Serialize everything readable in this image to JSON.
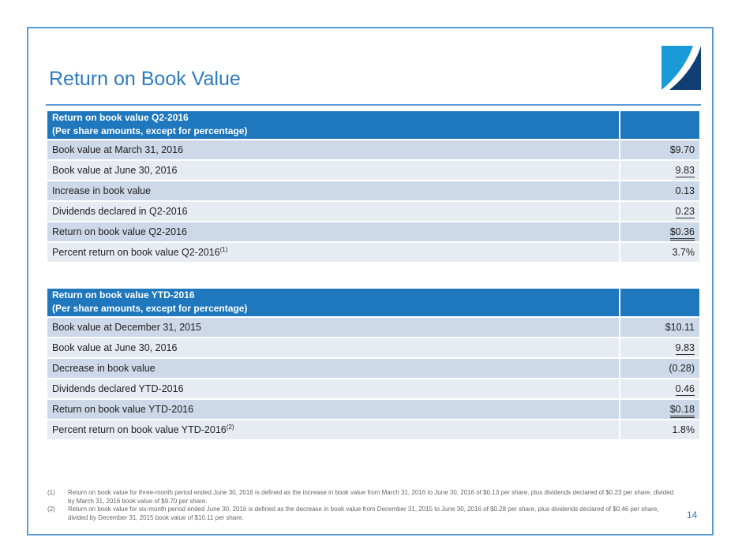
{
  "title": "Return on Book Value",
  "page_number": "14",
  "tables": [
    {
      "header": "Return on book value Q2-2016",
      "subheader": "(Per share amounts, except for percentage)",
      "rows": [
        {
          "label": "Book value at March 31, 2016",
          "value": "$9.70"
        },
        {
          "label": "Book value at June 30, 2016",
          "value": "9.83"
        },
        {
          "label": "Increase in book value",
          "value": "0.13"
        },
        {
          "label": "Dividends declared in Q2-2016",
          "value": "0.23"
        },
        {
          "label": "Return on book value Q2-2016",
          "value": "$0.36"
        },
        {
          "label": "Percent return on book value Q2-2016",
          "sup": "(1)",
          "value": "3.7%"
        }
      ]
    },
    {
      "header": "Return on book value YTD-2016",
      "subheader": "(Per share amounts, except for percentage)",
      "rows": [
        {
          "label": "Book value at December 31, 2015",
          "value": "$10.11"
        },
        {
          "label": "Book value at June 30, 2016",
          "value": "9.83"
        },
        {
          "label": "Decrease in book value",
          "value": "(0.28)"
        },
        {
          "label": "Dividends declared YTD-2016",
          "value": "0.46"
        },
        {
          "label": "Return on book value YTD-2016",
          "value": "$0.18"
        },
        {
          "label": "Percent return on book value YTD-2016",
          "sup": "(2)",
          "value": "1.8%"
        }
      ]
    }
  ],
  "footnotes": [
    {
      "num": "(1)",
      "text": "Return on book value for three-month period ended June 30, 2016 is defined as the increase in book value from March 31, 2016 to June 30, 2016 of $0.13 per share, plus dividends declared of $0.23 per share, divided by March 31, 2016 book value of $9.70 per share."
    },
    {
      "num": "(2)",
      "text": "Return on book value for six-month period ended June 30, 2016 is defined as the decrease in book value from December 31, 2015 to June 30, 2016 of $0.28 per share, plus dividends declared of $0.46 per share, divided by December 31, 2015 book value of $10.11 per share."
    }
  ],
  "colors": {
    "accent": "#2e7cc0",
    "header": "#1f78bd",
    "row_dark": "#cdd8e8",
    "row_light": "#e7ecf3"
  }
}
